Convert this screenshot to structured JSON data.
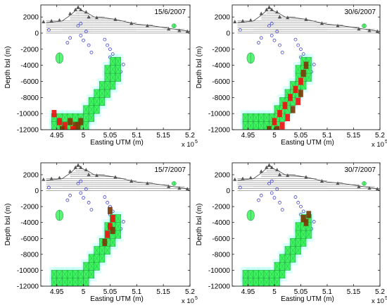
{
  "colors": {
    "cell_fill": "#3df55f",
    "cell_edge": "#2aa64a",
    "halo": "#b8fff4",
    "event_red": "#ee1111",
    "event_brown": "#7a3b08",
    "station": "#555555",
    "well": "#4444cc",
    "topo": "#777777",
    "axis": "#000000"
  },
  "chart_data": [
    {
      "type": "scatter",
      "date_label": "15/6/2007",
      "xlabel": "Easting UTM (m)",
      "ylabel": "Depth bsl (m)",
      "x_exponent": "x 10",
      "x_exponent_power": "5",
      "x_ticks": [
        "4.95",
        "5",
        "5.05",
        "5.1",
        "5.15",
        "5.2"
      ],
      "y_ticks": [
        "2000",
        "0",
        "-2000",
        "-4000",
        "-6000",
        "-8000",
        "-10000",
        "-12000"
      ],
      "xlim": [
        4.92,
        5.2
      ],
      "ylim": [
        -12000,
        3500
      ],
      "grid": false,
      "activity": [
        {
          "x": 4.945,
          "y": -10000,
          "level": "high"
        },
        {
          "x": 4.955,
          "y": -11000,
          "level": "high"
        },
        {
          "x": 4.965,
          "y": -11500,
          "level": "high"
        },
        {
          "x": 4.975,
          "y": -11000,
          "level": "mid"
        },
        {
          "x": 4.985,
          "y": -11500,
          "level": "mid"
        },
        {
          "x": 4.995,
          "y": -11000,
          "level": "mid"
        },
        {
          "x": 4.96,
          "y": -12000,
          "level": "mid"
        },
        {
          "x": 4.98,
          "y": -12000,
          "level": "high"
        },
        {
          "x": 4.99,
          "y": -11500,
          "level": "mid"
        }
      ]
    },
    {
      "type": "scatter",
      "date_label": "30/6/2007",
      "xlabel": "Easting UTM (m)",
      "ylabel": "Depth bsl (m)",
      "x_exponent": "x 10",
      "x_exponent_power": "5",
      "x_ticks": [
        "4.95",
        "5",
        "5.05",
        "5.1",
        "5.15",
        "5.2"
      ],
      "y_ticks": [
        "2000",
        "0",
        "-2000",
        "-4000",
        "-6000",
        "-8000",
        "-10000",
        "-12000"
      ],
      "xlim": [
        4.92,
        5.2
      ],
      "ylim": [
        -12000,
        3500
      ],
      "grid": false,
      "activity": [
        {
          "x": 5.0,
          "y": -11000,
          "level": "high"
        },
        {
          "x": 5.01,
          "y": -10000,
          "level": "high"
        },
        {
          "x": 5.02,
          "y": -9000,
          "level": "high"
        },
        {
          "x": 5.03,
          "y": -8000,
          "level": "high"
        },
        {
          "x": 5.04,
          "y": -7000,
          "level": "high"
        },
        {
          "x": 5.05,
          "y": -6000,
          "level": "high"
        },
        {
          "x": 5.055,
          "y": -5000,
          "level": "mid"
        },
        {
          "x": 5.06,
          "y": -4000,
          "level": "mid"
        },
        {
          "x": 5.005,
          "y": -12000,
          "level": "mid"
        },
        {
          "x": 5.015,
          "y": -11500,
          "level": "high"
        },
        {
          "x": 5.025,
          "y": -10500,
          "level": "high"
        },
        {
          "x": 5.035,
          "y": -9500,
          "level": "mid"
        },
        {
          "x": 5.045,
          "y": -8500,
          "level": "high"
        },
        {
          "x": 4.99,
          "y": -12000,
          "level": "mid"
        },
        {
          "x": 5.05,
          "y": -7500,
          "level": "mid"
        }
      ]
    },
    {
      "type": "scatter",
      "date_label": "15/7/2007",
      "xlabel": "Easting UTM (m)",
      "ylabel": "Depth bsl (m)",
      "x_exponent": "x 10",
      "x_exponent_power": "5",
      "x_ticks": [
        "4.95",
        "5",
        "5.05",
        "5.1",
        "5.15",
        "5.2"
      ],
      "y_ticks": [
        "2000",
        "0",
        "-2000",
        "-4000",
        "-6000",
        "-8000",
        "-10000",
        "-12000"
      ],
      "xlim": [
        4.92,
        5.2
      ],
      "ylim": [
        -12000,
        3500
      ],
      "grid": false,
      "activity": [
        {
          "x": 5.05,
          "y": -2500,
          "level": "mid"
        },
        {
          "x": 5.055,
          "y": -3500,
          "level": "high"
        },
        {
          "x": 5.05,
          "y": -4500,
          "level": "high"
        },
        {
          "x": 5.045,
          "y": -5500,
          "level": "high"
        },
        {
          "x": 5.04,
          "y": -6500,
          "level": "mid"
        },
        {
          "x": 5.055,
          "y": -5000,
          "level": "mid"
        }
      ]
    },
    {
      "type": "scatter",
      "date_label": "30/7/2007",
      "xlabel": "Easting UTM (m)",
      "ylabel": "Depth bsl (m)",
      "x_exponent": "x 10",
      "x_exponent_power": "5",
      "x_ticks": [
        "4.95",
        "5",
        "5.05",
        "5.1",
        "5.15",
        "5.2"
      ],
      "y_ticks": [
        "2000",
        "0",
        "-2000",
        "-4000",
        "-6000",
        "-8000",
        "-10000",
        "-12000"
      ],
      "xlim": [
        4.92,
        5.2
      ],
      "ylim": [
        -12000,
        3500
      ],
      "grid": false,
      "activity": [
        {
          "x": 5.065,
          "y": -3000,
          "level": "mid"
        },
        {
          "x": 5.06,
          "y": -4000,
          "level": "mid"
        },
        {
          "x": 5.055,
          "y": -3500,
          "level": "mid"
        }
      ]
    }
  ]
}
